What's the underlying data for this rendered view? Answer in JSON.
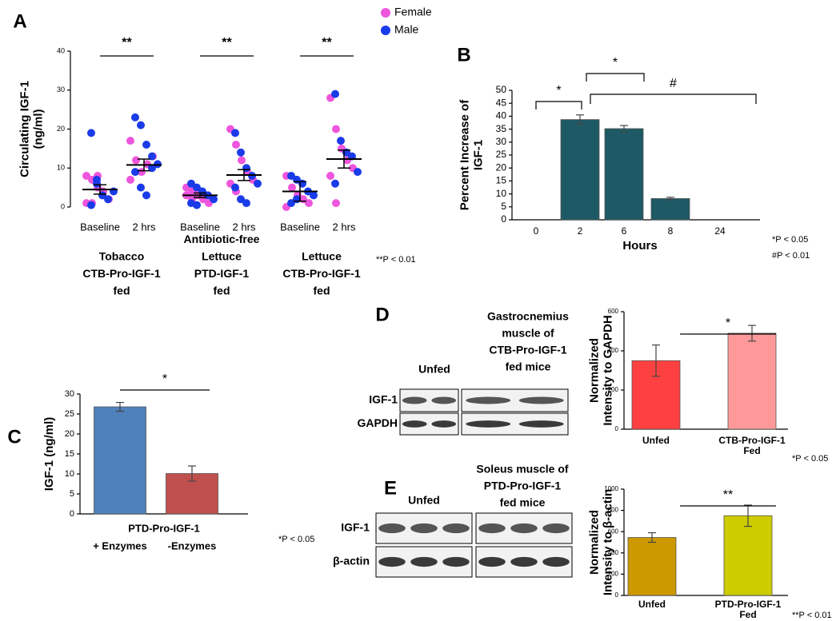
{
  "chart_data": [
    {
      "type": "dot",
      "panel": "A",
      "y_label": [
        "Circulating IGF-1",
        "(ng/ml)"
      ],
      "categories": [
        "Baseline",
        "2 hrs",
        "Baseline",
        "2 hrs",
        "Baseline",
        "2 hrs"
      ],
      "groups": [
        [
          "Tobacco",
          "CTB-Pro-IGF-1",
          "fed"
        ],
        [
          "Antibiotic-free",
          "Lettuce",
          "PTD-IGF-1",
          "fed"
        ],
        [
          "Lettuce",
          "CTB-Pro-IGF-1",
          "fed"
        ]
      ],
      "series": [
        {
          "name": "Female",
          "color": "#ee55dd",
          "values": [
            [
              8,
              7,
              5,
              4,
              2,
              1,
              1,
              8
            ],
            [
              17,
              12,
              9,
              11,
              13,
              7
            ],
            [
              5,
              4,
              3,
              2,
              1,
              3,
              2
            ],
            [
              20,
              16,
              12,
              9,
              7,
              6,
              4
            ],
            [
              8,
              5,
              3,
              2,
              1,
              0
            ],
            [
              28,
              20,
              15,
              12,
              10,
              8,
              1
            ]
          ]
        },
        {
          "name": "Male",
          "color": "#1a3be8",
          "values": [
            [
              19,
              6,
              3,
              2,
              4,
              0.5,
              7
            ],
            [
              23,
              21,
              16,
              13,
              11,
              9,
              5,
              3,
              10
            ],
            [
              6,
              5,
              4,
              3,
              2,
              1,
              0.5
            ],
            [
              19,
              14,
              10,
              8,
              6,
              5,
              2,
              1
            ],
            [
              8,
              7,
              6,
              4,
              3,
              1,
              2
            ],
            [
              29,
              17,
              14,
              13,
              9,
              6
            ]
          ]
        }
      ],
      "means": [
        4.5,
        10.8,
        3,
        8.2,
        4,
        12.3
      ],
      "sem": [
        1.2,
        1.5,
        0.6,
        1.4,
        2.5,
        2.3
      ],
      "significance": [
        "**",
        "**",
        "**"
      ],
      "notes": [
        "**P < 0.01"
      ],
      "ylim": [
        0,
        40
      ],
      "yticks": [
        0,
        10,
        20,
        30,
        40
      ]
    },
    {
      "type": "bar",
      "panel": "B",
      "y_label": [
        "Percent Increase of",
        "IGF-1"
      ],
      "x_label": "Hours",
      "categories": [
        "0",
        "2",
        "6",
        "8",
        "24"
      ],
      "values": [
        0,
        38.7,
        35.2,
        8.2,
        0
      ],
      "errors": [
        null,
        1.8,
        1.2,
        0.5,
        null
      ],
      "color": "#1e5a66",
      "brackets": [
        "*",
        "*",
        "#"
      ],
      "notes": [
        "*P < 0.05",
        "#P < 0.01"
      ],
      "ylim": [
        0,
        50
      ],
      "yticks": [
        0,
        5,
        10,
        15,
        20,
        25,
        30,
        35,
        40,
        45,
        50
      ]
    },
    {
      "type": "bar",
      "panel": "C",
      "y_label": [
        "IGF-1 (ng/ml)"
      ],
      "group_label": "PTD-Pro-IGF-1",
      "categories": [
        "+ Enzymes",
        "-Enzymes"
      ],
      "values": [
        26.8,
        10.1
      ],
      "errors": [
        1.1,
        1.9
      ],
      "colors": [
        "#4f81bd",
        "#c0504d"
      ],
      "brackets": [
        "*"
      ],
      "notes": [
        "*P < 0.05"
      ],
      "ylim": [
        0,
        30
      ],
      "yticks": [
        0,
        5,
        10,
        15,
        20,
        25,
        30
      ]
    },
    {
      "type": "bar",
      "y_label": [
        "Normalized",
        "Intensity to GAPDH"
      ],
      "categories": [
        [
          "Unfed"
        ],
        [
          "CTB-Pro-IGF-1",
          "Fed"
        ]
      ],
      "values": [
        350,
        490
      ],
      "errors": [
        80,
        40
      ],
      "colors": [
        "#ff4040",
        "#ff9999"
      ],
      "brackets": [
        "*"
      ],
      "notes": [
        "*P < 0.05"
      ],
      "ylim": [
        0,
        600
      ],
      "yticks": [
        0,
        200,
        400,
        600
      ]
    },
    {
      "type": "bar",
      "y_label": [
        "Normalized",
        "Intensity to β-actin"
      ],
      "categories": [
        [
          "Unfed"
        ],
        [
          "PTD-Pro-IGF-1",
          "Fed"
        ]
      ],
      "values": [
        545,
        750
      ],
      "errors": [
        45,
        100
      ],
      "colors": [
        "#cc9900",
        "#cccc00"
      ],
      "brackets": [
        "**"
      ],
      "notes": [
        "**P < 0.01"
      ],
      "ylim": [
        0,
        1000
      ],
      "yticks": [
        0,
        200,
        400,
        600,
        800,
        1000
      ]
    }
  ],
  "blots": [
    {
      "panel": "D",
      "title": [
        "Gastrocnemius",
        "muscle of",
        "CTB-Pro-IGF-1",
        "fed mice"
      ],
      "lane_label": "Unfed",
      "rows": [
        "IGF-1",
        "GAPDH"
      ]
    },
    {
      "panel": "E",
      "title": [
        "Soleus muscle of",
        "PTD-Pro-IGF-1",
        "fed mice"
      ],
      "lane_label": "Unfed",
      "rows": [
        "IGF-1",
        "β-actin"
      ]
    }
  ]
}
